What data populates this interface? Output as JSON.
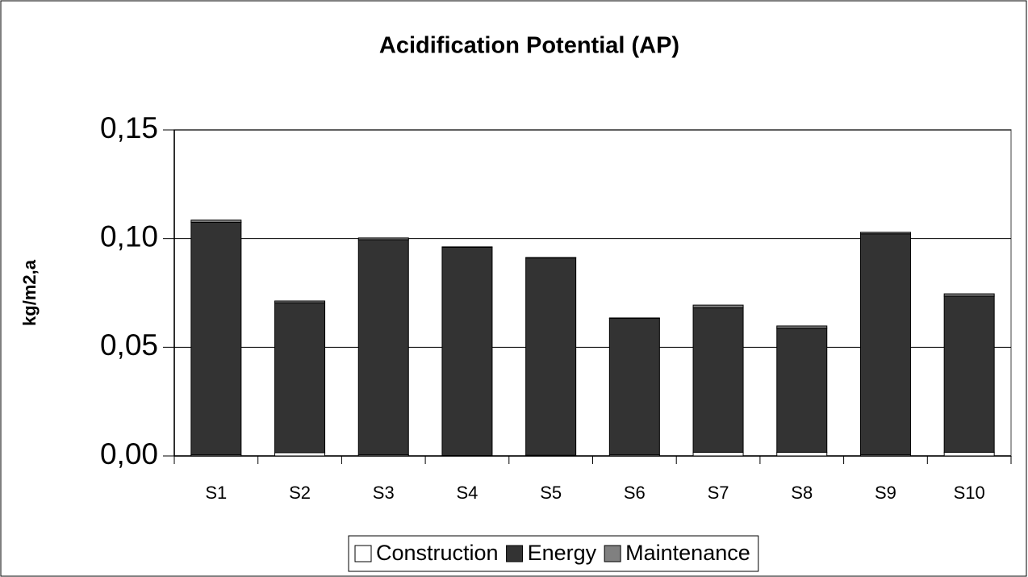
{
  "chart_data": {
    "type": "stacked_bar",
    "title": "Acidification Potential (AP)",
    "y_label": "kg/m2,a",
    "categories": [
      "S1",
      "S2",
      "S3",
      "S4",
      "S5",
      "S6",
      "S7",
      "S8",
      "S9",
      "S10"
    ],
    "series": [
      {
        "name": "Construction",
        "color": "#ffffff",
        "values": [
          0.0005,
          0.0015,
          0.0005,
          0.0002,
          0.0003,
          0.0005,
          0.0017,
          0.0017,
          0.0005,
          0.0017
        ]
      },
      {
        "name": "Energy",
        "color": "#333333",
        "values": [
          0.107,
          0.069,
          0.099,
          0.0958,
          0.0908,
          0.0628,
          0.0665,
          0.0571,
          0.1017,
          0.0718
        ]
      },
      {
        "name": "Maintenance",
        "color": "#808080",
        "values": [
          0.001,
          0.0008,
          0.0008,
          0.0002,
          0.0002,
          0.0002,
          0.0012,
          0.001,
          0.0007,
          0.0011
        ]
      }
    ],
    "ylim": [
      0,
      0.15
    ],
    "yticks": [
      {
        "value": 0,
        "label": "0,00"
      },
      {
        "value": 0.05,
        "label": "0,05"
      },
      {
        "value": 0.1,
        "label": "0,10"
      },
      {
        "value": 0.15,
        "label": "0,15"
      }
    ],
    "grid": true,
    "legend": "bottom"
  }
}
